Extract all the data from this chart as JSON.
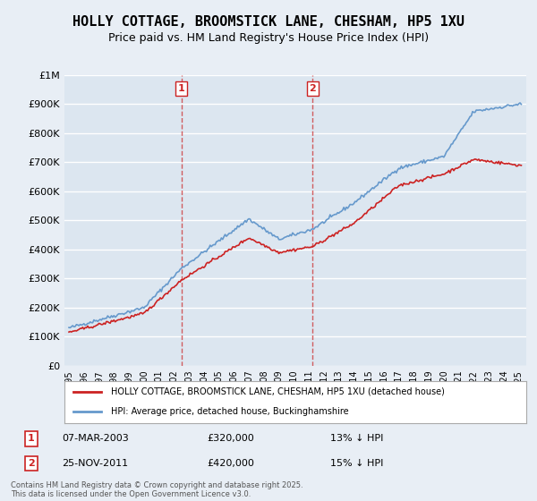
{
  "title": "HOLLY COTTAGE, BROOMSTICK LANE, CHESHAM, HP5 1XU",
  "subtitle": "Price paid vs. HM Land Registry's House Price Index (HPI)",
  "title_fontsize": 11,
  "subtitle_fontsize": 9,
  "bg_color": "#e8eef5",
  "plot_bg_color": "#dce6f0",
  "grid_color": "#ffffff",
  "hpi_color": "#6699cc",
  "price_color": "#cc2222",
  "marker1_date_idx": 90,
  "marker2_date_idx": 195,
  "marker1_label": "1",
  "marker2_label": "2",
  "marker1_date": "07-MAR-2003",
  "marker1_price": "£320,000",
  "marker1_hpi": "13% ↓ HPI",
  "marker2_date": "25-NOV-2011",
  "marker2_price": "£420,000",
  "marker2_hpi": "15% ↓ HPI",
  "legend_line1": "HOLLY COTTAGE, BROOMSTICK LANE, CHESHAM, HP5 1XU (detached house)",
  "legend_line2": "HPI: Average price, detached house, Buckinghamshire",
  "footer": "Contains HM Land Registry data © Crown copyright and database right 2025.\nThis data is licensed under the Open Government Licence v3.0.",
  "ylim": [
    0,
    1000000
  ],
  "yticks": [
    0,
    100000,
    200000,
    300000,
    400000,
    500000,
    600000,
    700000,
    800000,
    900000,
    1000000
  ],
  "ytick_labels": [
    "£0",
    "£100K",
    "£200K",
    "£300K",
    "£400K",
    "£500K",
    "£600K",
    "£700K",
    "£800K",
    "£900K",
    "£1M"
  ]
}
